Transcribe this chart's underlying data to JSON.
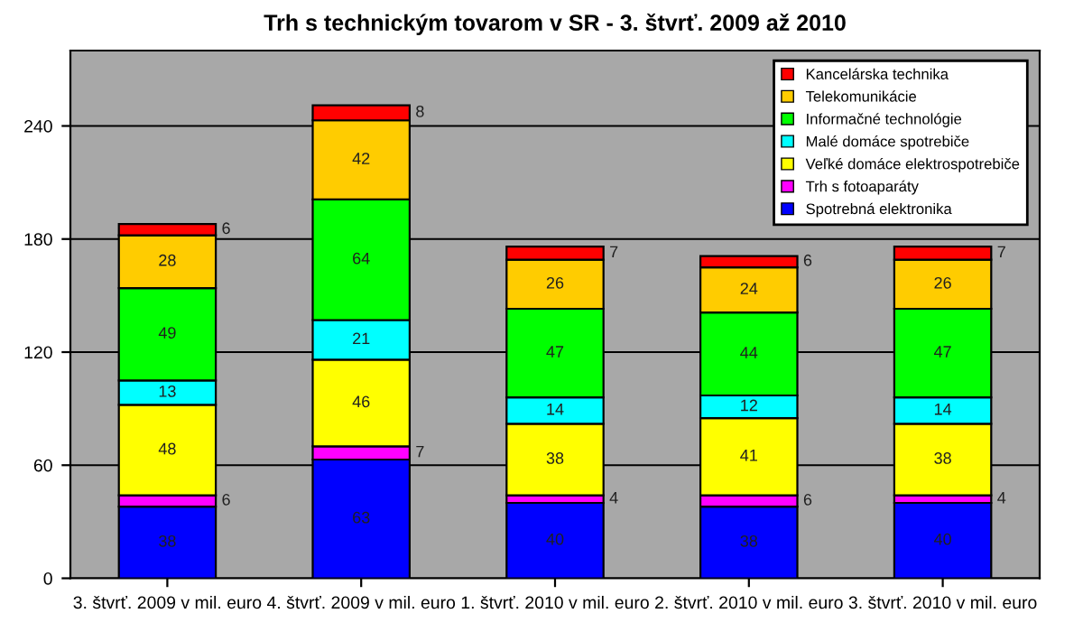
{
  "chart_data": {
    "type": "bar",
    "title": "Trh s technickým tovarom v SR - 3. štvrť. 2009 až 2010",
    "stacked": true,
    "data_labels": true,
    "categories": [
      "3. štvrť. 2009 v mil. euro",
      "4. štvrť. 2009 v mil. euro",
      "1. štvrť. 2010 v mil. euro",
      "2. štvrť. 2010 v mil. euro",
      "3. štvrť. 2010 v mil. euro"
    ],
    "series": [
      {
        "name": "Spotrebná elektronika",
        "color": "#0000ff",
        "values": [
          38,
          63,
          40,
          38,
          40
        ]
      },
      {
        "name": "Trh s fotoaparáty",
        "color": "#ff00ff",
        "values": [
          6,
          7,
          4,
          6,
          4
        ]
      },
      {
        "name": "Veľké domáce elektrospotrebiče",
        "color": "#ffff00",
        "values": [
          48,
          46,
          38,
          41,
          38
        ]
      },
      {
        "name": "Malé domáce spotrebiče",
        "color": "#00ffff",
        "values": [
          13,
          21,
          14,
          12,
          14
        ]
      },
      {
        "name": "Informačné technológie",
        "color": "#00ff00",
        "values": [
          49,
          64,
          47,
          44,
          47
        ]
      },
      {
        "name": "Telekomunikácie",
        "color": "#ffcc00",
        "values": [
          28,
          42,
          26,
          24,
          26
        ]
      },
      {
        "name": "Kancelárska technika",
        "color": "#ff0000",
        "values": [
          6,
          8,
          7,
          6,
          7
        ]
      }
    ],
    "ylim": [
      0,
      280
    ],
    "yticks": [
      0,
      60,
      120,
      180,
      240
    ],
    "grid": "y",
    "legend": "top right"
  }
}
